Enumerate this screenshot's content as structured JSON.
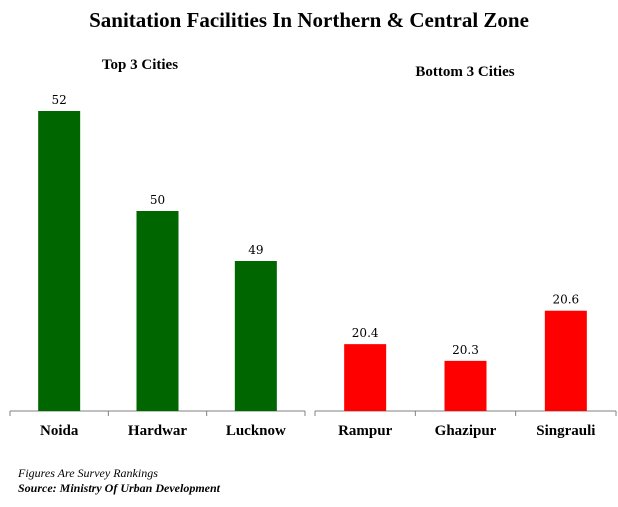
{
  "title": "Sanitation Facilities In Northern & Central Zone",
  "footnote": "Figures Are Survey Rankings",
  "source": "Source: Ministry Of Urban Development",
  "chart_data": [
    {
      "type": "bar",
      "title": "Top 3 Cities",
      "categories": [
        "Noida",
        "Hardwar",
        "Lucknow"
      ],
      "values": [
        52,
        50,
        49
      ],
      "color": "#006600",
      "ylim": [
        46,
        52
      ],
      "grid": false
    },
    {
      "type": "bar",
      "title": "Bottom 3 Cities",
      "categories": [
        "Rampur",
        "Ghazipur",
        "Singrauli"
      ],
      "values": [
        20.4,
        20.3,
        20.6
      ],
      "color": "#ff0000",
      "ylim": [
        20,
        20.7
      ],
      "grid": false
    }
  ]
}
